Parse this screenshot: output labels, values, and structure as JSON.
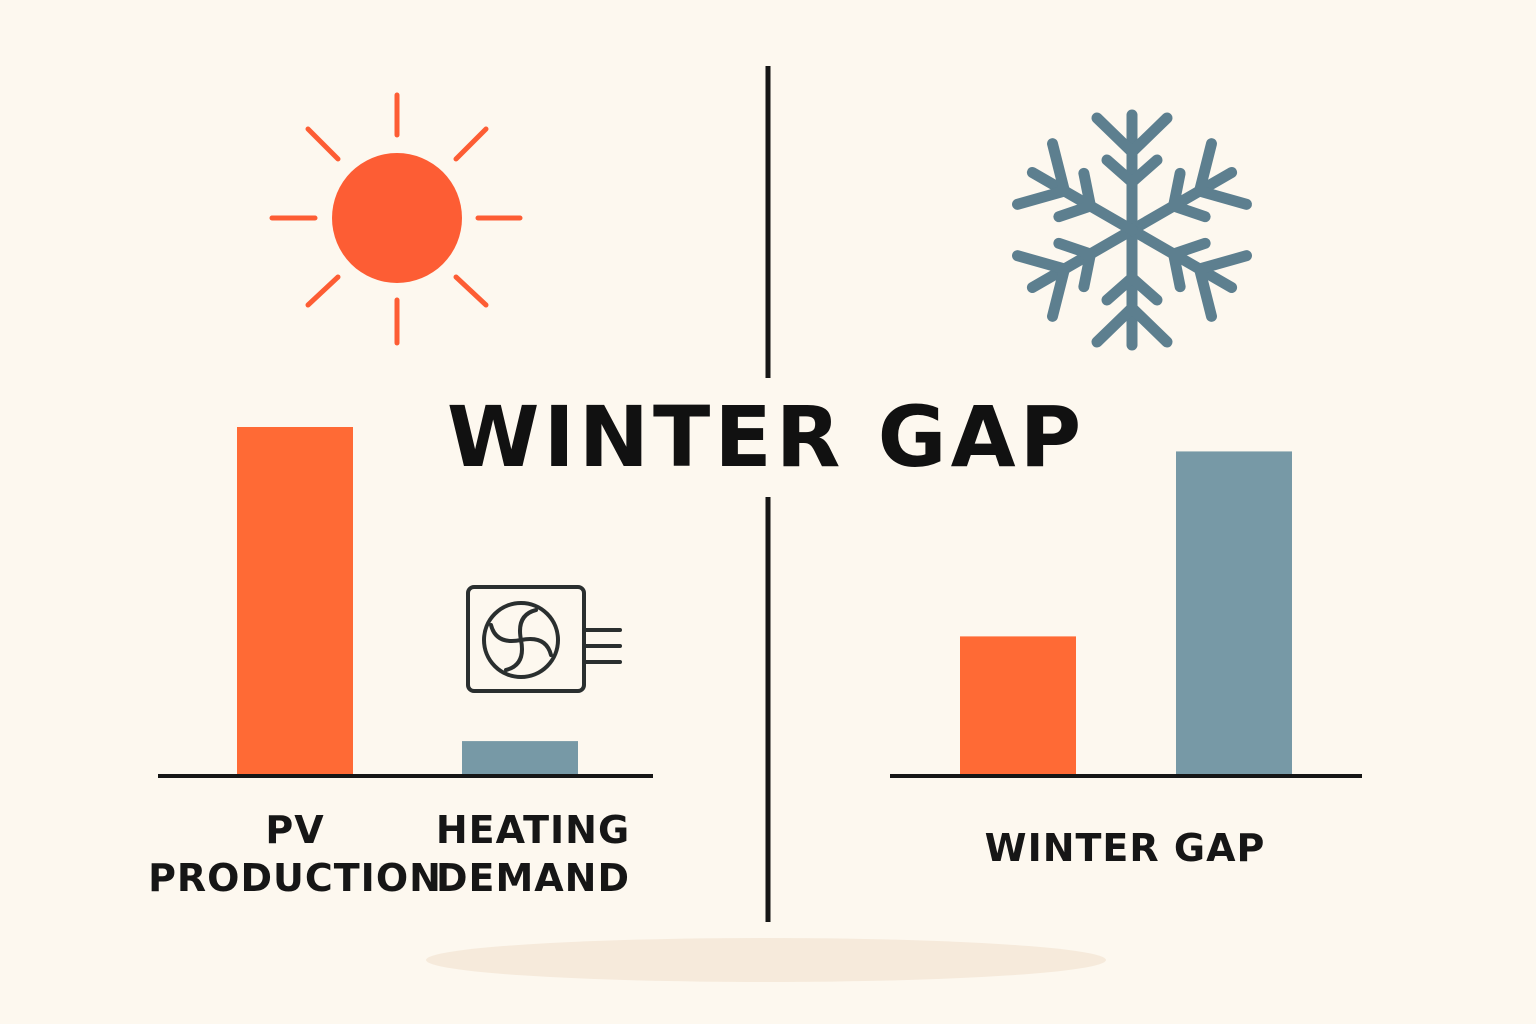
{
  "title": "WINTER GAP",
  "chart_data": [
    {
      "type": "bar",
      "categories": [
        "PV\nPRODUCTION",
        "HEATING\nDEMAND"
      ],
      "values": [
        100,
        10
      ],
      "colors": [
        "#ff6a35",
        "#7799a6"
      ],
      "ylim": [
        0,
        100
      ]
    },
    {
      "type": "bar",
      "categories": [
        null,
        null
      ],
      "values": [
        40,
        93
      ],
      "colors": [
        "#ff6a35",
        "#7799a6"
      ],
      "ylim": [
        0,
        100
      ],
      "x_label": "WINTER GAP"
    }
  ]
}
